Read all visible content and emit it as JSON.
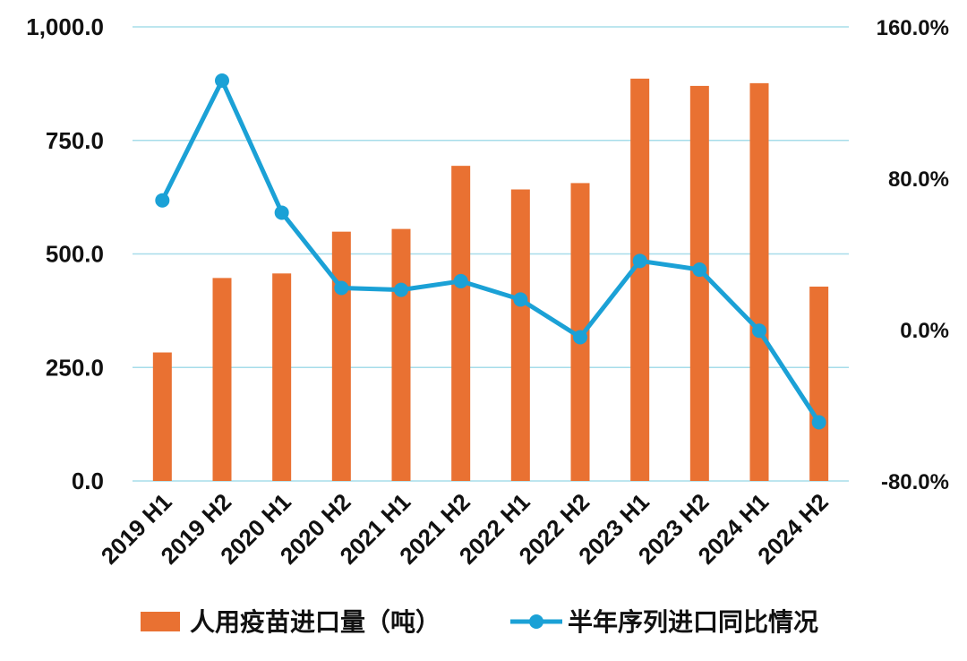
{
  "chart_data": {
    "type": "bar+line",
    "categories": [
      "2019 H1",
      "2019 H2",
      "2020 H1",
      "2020 H2",
      "2021 H1",
      "2021 H2",
      "2022 H1",
      "2022 H2",
      "2023 H1",
      "2023 H2",
      "2024 H1",
      "2024 H2"
    ],
    "series": [
      {
        "name": "人用疫苗进口量（吨）",
        "type": "bar",
        "axis": "left",
        "color": "#E97132",
        "values": [
          283,
          447,
          457,
          549,
          555,
          694,
          642,
          656,
          886,
          870,
          876,
          428
        ]
      },
      {
        "name": "半年序列进口同比情况",
        "type": "line",
        "axis": "right",
        "color": "#1BA1D6",
        "values": [
          68.3,
          131.6,
          61.8,
          22,
          21,
          25.6,
          15.9,
          -4,
          36.3,
          31.7,
          -0.6,
          -49
        ]
      }
    ],
    "y_left": {
      "min": 0,
      "max": 1000,
      "ticks": [
        "0.0",
        "250.0",
        "500.0",
        "750.0",
        "1,000.0"
      ],
      "tick_values": [
        0,
        250,
        500,
        750,
        1000
      ]
    },
    "y_right": {
      "min": -80,
      "max": 160,
      "ticks": [
        "-80.0%",
        "0.0%",
        "80.0%",
        "160.0%"
      ],
      "tick_values": [
        -80,
        0,
        80,
        160
      ]
    },
    "grid": true,
    "gridline_color": "#A7DDEA",
    "legend_position": "bottom"
  }
}
